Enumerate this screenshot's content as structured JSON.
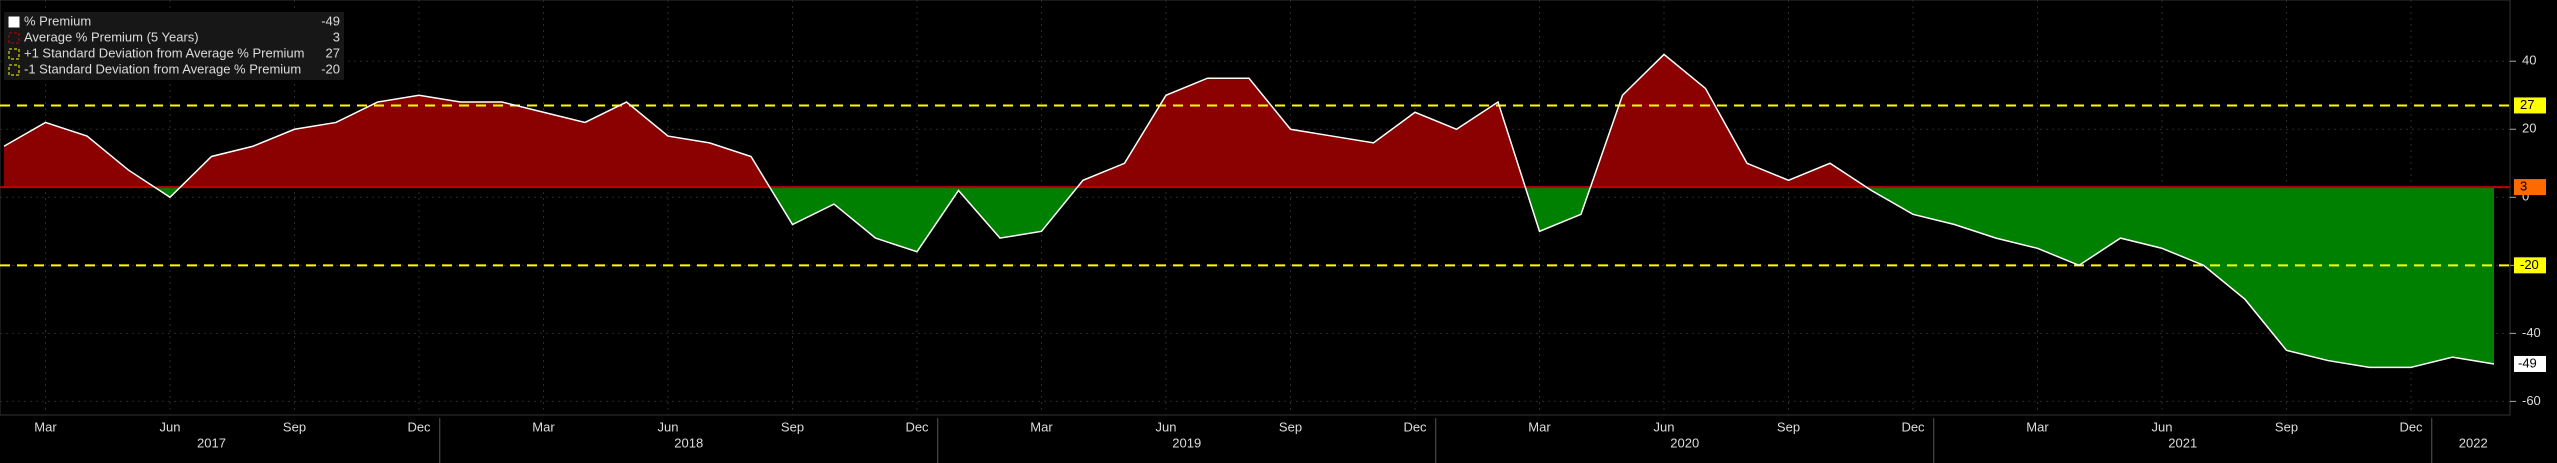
{
  "chart_data": {
    "type": "line",
    "categories": [
      null,
      "Mar",
      null,
      null,
      "Jun",
      null,
      null,
      "Sep",
      null,
      null,
      "Dec",
      null,
      null,
      "Mar",
      null,
      null,
      "Jun",
      null,
      null,
      "Sep",
      null,
      null,
      "Dec",
      null,
      null,
      "Mar",
      null,
      null,
      "Jun",
      null,
      null,
      "Sep",
      null,
      null,
      "Dec",
      null,
      null,
      "Mar",
      null,
      null,
      "Jun",
      null,
      null,
      "Sep",
      null,
      null,
      "Dec",
      null,
      null,
      "Mar",
      null,
      null,
      "Jun",
      null,
      null,
      "Sep",
      null,
      null,
      "Dec",
      null,
      null
    ],
    "years": [
      "2017",
      "2018",
      "2019",
      "2020",
      "2021",
      "2022"
    ],
    "series": [
      {
        "name": "% Premium",
        "color": "#ffffff",
        "values": [
          15,
          22,
          18,
          8,
          0,
          12,
          15,
          20,
          22,
          28,
          30,
          28,
          28,
          25,
          22,
          28,
          18,
          16,
          12,
          -8,
          -2,
          -12,
          -16,
          2,
          -12,
          -10,
          5,
          10,
          30,
          35,
          35,
          20,
          18,
          16,
          25,
          20,
          28,
          -10,
          -5,
          30,
          42,
          32,
          10,
          5,
          10,
          2,
          -5,
          -8,
          -12,
          -15,
          -20,
          -12,
          -15,
          -20,
          -30,
          -45,
          -48,
          -50,
          -50,
          -47,
          -49
        ]
      }
    ],
    "references": [
      {
        "name": "Average % Premium (5 Years)",
        "value": 3,
        "color": "#ff6a00"
      },
      {
        "name": "+1 Standard Deviation from Average % Premium",
        "value": 27,
        "color": "#ffff00"
      },
      {
        "name": "-1 Standard Deviation from Average % Premium",
        "value": -20,
        "color": "#ffff00"
      }
    ],
    "above_color": "#8b0000",
    "below_color": "#008000",
    "ylim": [
      -64,
      58
    ],
    "yticks": [
      40,
      20,
      0,
      -20,
      -40,
      -60
    ],
    "grid": true
  }
}
